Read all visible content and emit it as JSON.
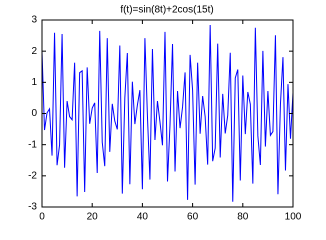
{
  "chart_data": {
    "type": "line",
    "title": "f(t)=sin(8t)+2cos(15t)",
    "x": [
      0,
      1,
      2,
      3,
      4,
      5,
      6,
      7,
      8,
      9,
      10,
      11,
      12,
      13,
      14,
      15,
      16,
      17,
      18,
      19,
      20,
      21,
      22,
      23,
      24,
      25,
      26,
      27,
      28,
      29,
      30,
      31,
      32,
      33,
      34,
      35,
      36,
      37,
      38,
      39,
      40,
      41,
      42,
      43,
      44,
      45,
      46,
      47,
      48,
      49,
      50,
      51,
      52,
      53,
      54,
      55,
      56,
      57,
      58,
      59,
      60,
      61,
      62,
      63,
      64,
      65,
      66,
      67,
      68,
      69,
      70,
      71,
      72,
      73,
      74,
      75,
      76,
      77,
      78,
      79,
      80,
      81,
      82,
      83,
      84,
      85,
      86,
      87,
      88,
      89,
      90,
      91,
      92,
      93,
      94,
      95,
      96,
      97,
      98,
      99,
      100
    ],
    "values": [
      2.0,
      -0.53,
      0.02,
      0.15,
      -1.35,
      2.59,
      -1.66,
      -1.01,
      2.55,
      -1.74,
      0.4,
      -0.1,
      -0.2,
      1.63,
      -2.66,
      1.31,
      1.37,
      -2.52,
      1.48,
      -0.33,
      0.17,
      0.34,
      -1.91,
      2.65,
      -0.92,
      -1.69,
      2.42,
      -1.23,
      0.31,
      -0.24,
      -0.51,
      2.18,
      -2.57,
      0.5,
      1.94,
      -2.27,
      1.02,
      -0.34,
      0.27,
      0.75,
      -2.43,
      2.42,
      -0.07,
      -2.12,
      2.07,
      -0.85,
      0.4,
      -0.27,
      -1.02,
      2.62,
      -2.18,
      -0.36,
      2.23,
      -1.86,
      0.72,
      -0.47,
      0.21,
      1.32,
      -2.77,
      1.88,
      0.75,
      -2.28,
      1.63,
      -0.65,
      0.56,
      -0.1,
      -1.64,
      2.84,
      -1.53,
      -1.11,
      2.24,
      -1.41,
      0.63,
      -0.64,
      -0.06,
      1.95,
      -2.83,
      1.14,
      1.41,
      -2.15,
      1.22,
      -0.66,
      0.69,
      0.3,
      -2.25,
      2.75,
      -0.72,
      -1.65,
      2.01,
      -1.06,
      0.72,
      -0.7,
      -0.58,
      2.51,
      -2.59,
      0.3,
      1.81,
      -1.83,
      0.94,
      -0.81,
      0.67
    ],
    "color": "#0000ff",
    "xlim": [
      0,
      100
    ],
    "xticks": [
      0,
      20,
      40,
      60,
      80,
      100
    ],
    "ylim": [
      -3,
      3
    ],
    "yticks": [
      -3,
      -2,
      -1,
      0,
      1,
      2,
      3
    ]
  }
}
